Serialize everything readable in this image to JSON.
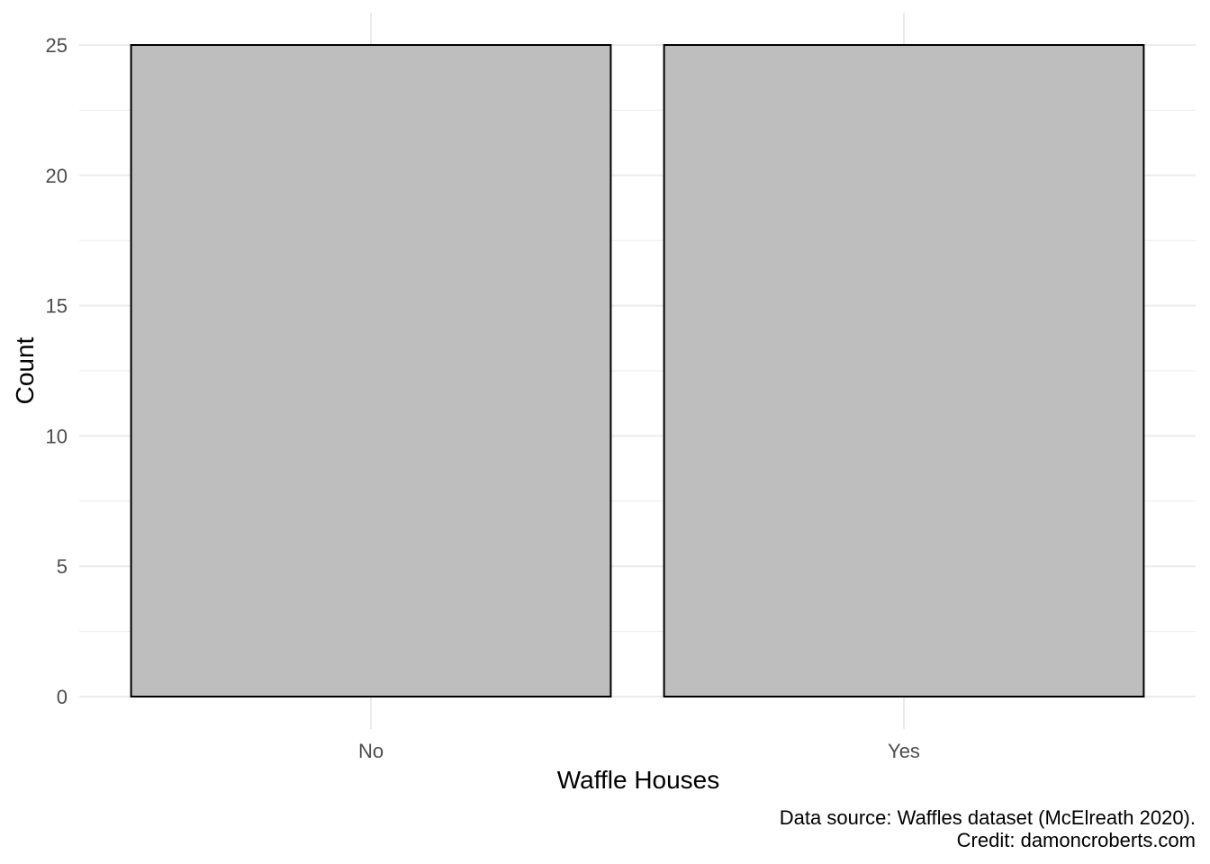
{
  "chart_data": {
    "type": "bar",
    "categories": [
      "No",
      "Yes"
    ],
    "values": [
      25,
      25
    ],
    "title": "",
    "xlabel": "Waffle Houses",
    "ylabel": "Count",
    "ylim": [
      0,
      25
    ],
    "y_ticks": [
      0,
      5,
      10,
      15,
      20,
      25
    ],
    "grid": true,
    "bar_fill": "#bebebe",
    "bar_outline": "#000000",
    "gridline_color": "#ebebeb",
    "caption_lines": [
      "Data source: Waffles dataset (McElreath 2020).",
      "Credit: damoncroberts.com"
    ]
  }
}
